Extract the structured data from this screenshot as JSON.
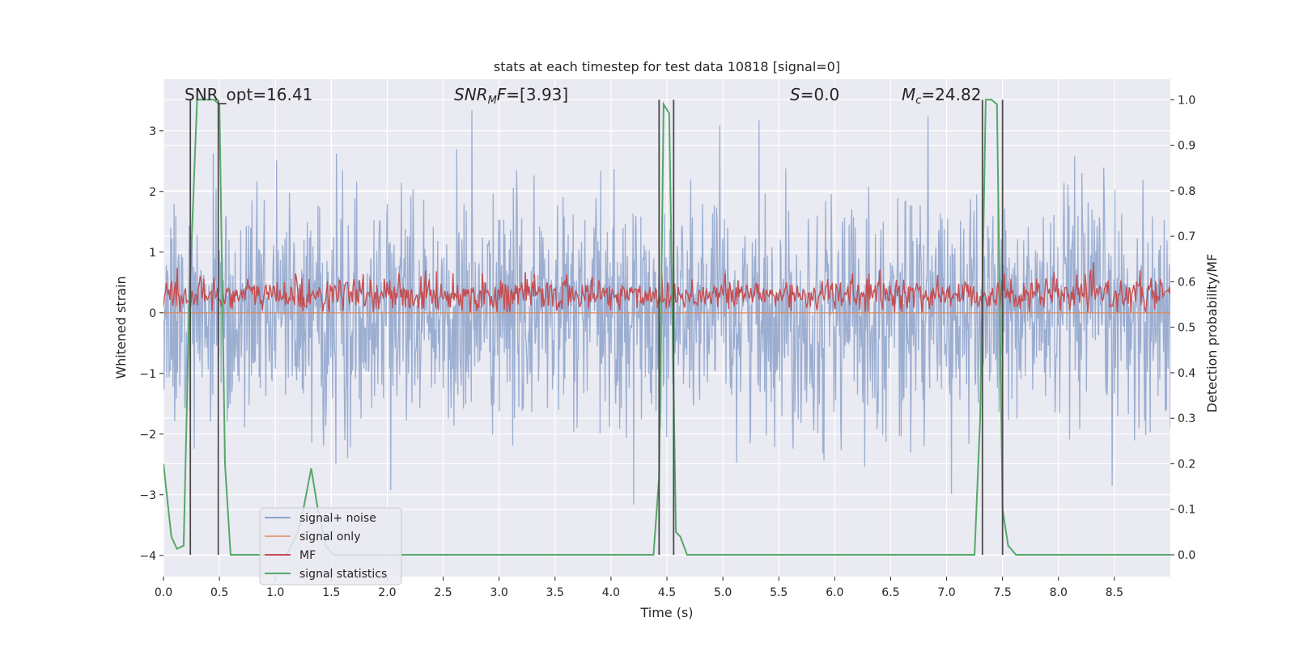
{
  "chart_data": {
    "type": "line",
    "title": "stats at each timestep for test data 10818 [signal=0]",
    "xlabel": "Time (s)",
    "ylabel": "Whitened strain",
    "ylabel_right": "Detection probability/MF",
    "xlim": [
      0,
      9
    ],
    "ylim": [
      -4.35,
      3.85
    ],
    "ylim_right": [
      -0.048,
      1.045
    ],
    "x_ticks": [
      "0.0",
      "0.5",
      "1.0",
      "1.5",
      "2.0",
      "2.5",
      "3.0",
      "3.5",
      "4.0",
      "4.5",
      "5.0",
      "5.5",
      "6.0",
      "6.5",
      "7.0",
      "7.5",
      "8.0",
      "8.5"
    ],
    "y_ticks": [
      "−4",
      "−3",
      "−2",
      "−1",
      "0",
      "1",
      "2",
      "3"
    ],
    "y_ticks_right": [
      "0.0",
      "0.1",
      "0.2",
      "0.3",
      "0.4",
      "0.5",
      "0.6",
      "0.7",
      "0.8",
      "0.9",
      "1.0"
    ],
    "annotations": {
      "snr_opt": "SNR_opt=16.41",
      "snr_mf_value": "=[3.93]",
      "s_value": "=0.0",
      "mc_value": "=24.82"
    },
    "series": [
      {
        "name": "signal+ noise",
        "color": "#4c72b0",
        "description": "whitened strain, noise spanning roughly -2 to 2 with spikes to about ±3.3"
      },
      {
        "name": "signal only",
        "color": "#dd8452",
        "values_constant": 0
      },
      {
        "name": "MF",
        "color": "#c44e52",
        "description": "matched filter output fluctuating between about 0 and 0.85"
      },
      {
        "name": "signal statistics",
        "color": "#55a868",
        "x": [
          0.0,
          0.07,
          0.12,
          0.18,
          0.23,
          0.3,
          0.35,
          0.4,
          0.45,
          0.5,
          0.55,
          0.6,
          0.65,
          0.7,
          0.9,
          1.1,
          1.2,
          1.25,
          1.32,
          1.38,
          1.45,
          1.52,
          1.6,
          2.0,
          3.0,
          4.0,
          4.38,
          4.43,
          4.47,
          4.52,
          4.58,
          4.62,
          4.68,
          5.0,
          6.0,
          7.0,
          7.25,
          7.3,
          7.35,
          7.4,
          7.45,
          7.5,
          7.55,
          7.62,
          8.0,
          9.0
        ],
        "values": [
          0.2,
          0.04,
          0.013,
          0.02,
          0.55,
          1.0,
          1.0,
          1.0,
          1.0,
          0.99,
          0.2,
          0.0,
          0.0,
          0.0,
          0.0,
          0.0,
          0.05,
          0.1,
          0.19,
          0.1,
          0.02,
          0.0,
          0.0,
          0.0,
          0.0,
          0.0,
          0.0,
          0.17,
          0.99,
          0.97,
          0.05,
          0.04,
          0.0,
          0.0,
          0.0,
          0.0,
          0.0,
          0.3,
          1.0,
          1.0,
          0.99,
          0.1,
          0.02,
          0.0,
          0.0,
          0.0
        ]
      }
    ],
    "vertical_lines": [
      0.24,
      0.49,
      4.43,
      4.56,
      7.32,
      7.5
    ],
    "legend_location": "lower-left",
    "grid": true,
    "style": {
      "background": "#eaeaf2",
      "grid": "#ffffff",
      "vline": "#4a4a4a"
    }
  }
}
